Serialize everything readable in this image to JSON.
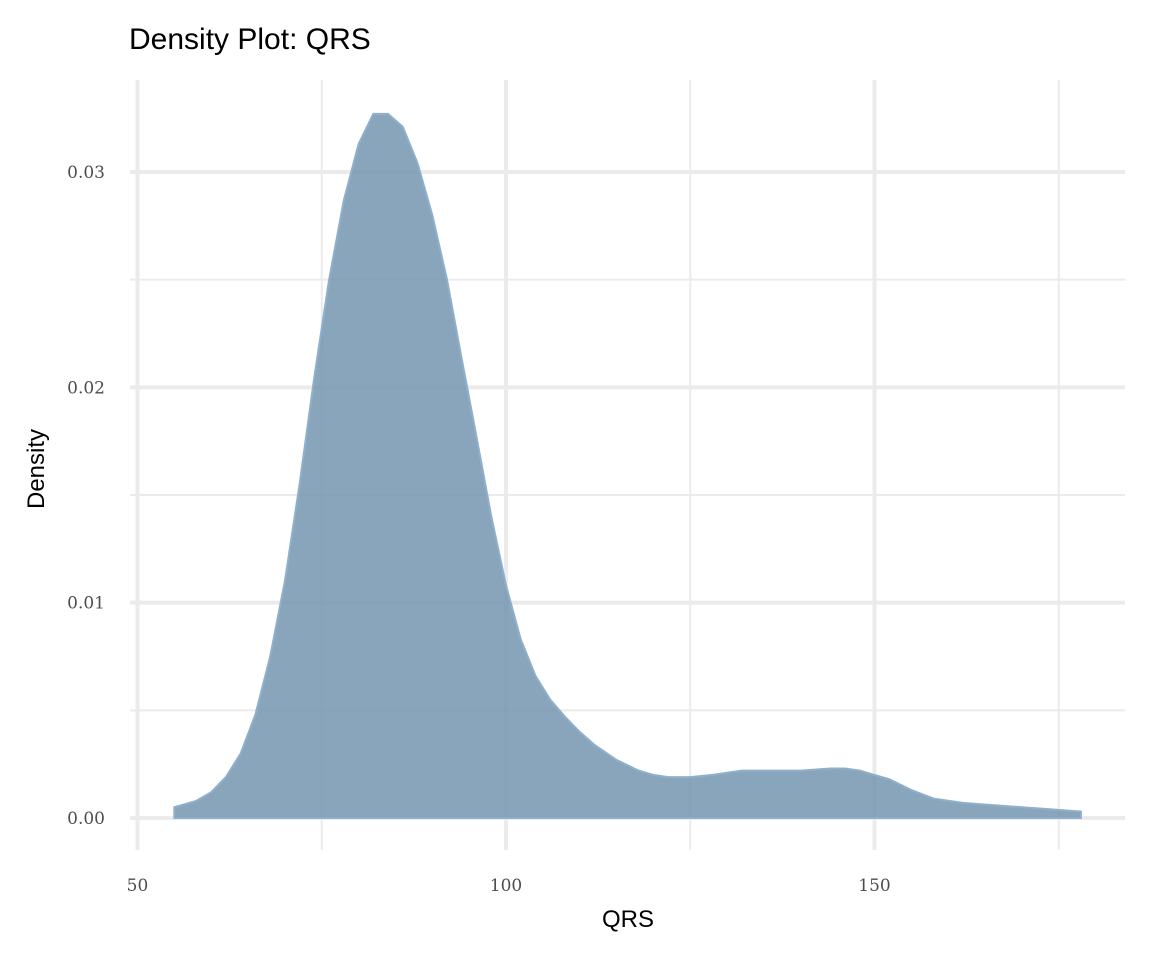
{
  "chart_data": {
    "type": "area",
    "title": "Density Plot: QRS",
    "xlabel": "QRS",
    "ylabel": "Density",
    "xlim": [
      50,
      181
    ],
    "ylim": [
      0,
      0.0345
    ],
    "x_ticks": [
      50,
      100,
      150
    ],
    "x_minor": [
      75,
      125,
      175
    ],
    "y_ticks": [
      0.0,
      0.01,
      0.02,
      0.03
    ],
    "y_tick_labels": [
      "0.00",
      "0.01",
      "0.02",
      "0.03"
    ],
    "y_minor": [
      0.005,
      0.015,
      0.025
    ],
    "grid": true,
    "legend": "none",
    "fill_color": "#6f91ad",
    "fill_opacity": 0.82,
    "outline_color": "#8fb0cc",
    "series": [
      {
        "x": [
          55,
          58,
          60,
          62,
          64,
          66,
          68,
          70,
          72,
          74,
          76,
          78,
          80,
          82,
          84,
          86,
          88,
          90,
          92,
          94,
          96,
          98,
          100,
          102,
          104,
          106,
          108,
          110,
          112,
          115,
          118,
          120,
          122,
          125,
          128,
          132,
          136,
          140,
          144,
          146,
          148,
          150,
          152,
          155,
          158,
          162,
          166,
          170,
          174,
          178,
          178
        ],
        "values": [
          0.0005,
          0.0008,
          0.0012,
          0.0019,
          0.003,
          0.0048,
          0.0075,
          0.011,
          0.0155,
          0.0205,
          0.025,
          0.0287,
          0.0313,
          0.0327,
          0.0327,
          0.0321,
          0.0304,
          0.028,
          0.025,
          0.0213,
          0.0177,
          0.014,
          0.0108,
          0.0083,
          0.0066,
          0.0055,
          0.0047,
          0.004,
          0.0034,
          0.0027,
          0.0022,
          0.002,
          0.0019,
          0.0019,
          0.002,
          0.0022,
          0.0022,
          0.0022,
          0.0023,
          0.0023,
          0.0022,
          0.002,
          0.0018,
          0.0013,
          0.0009,
          0.0007,
          0.0006,
          0.0005,
          0.0004,
          0.0003,
          0.0003
        ]
      }
    ]
  }
}
